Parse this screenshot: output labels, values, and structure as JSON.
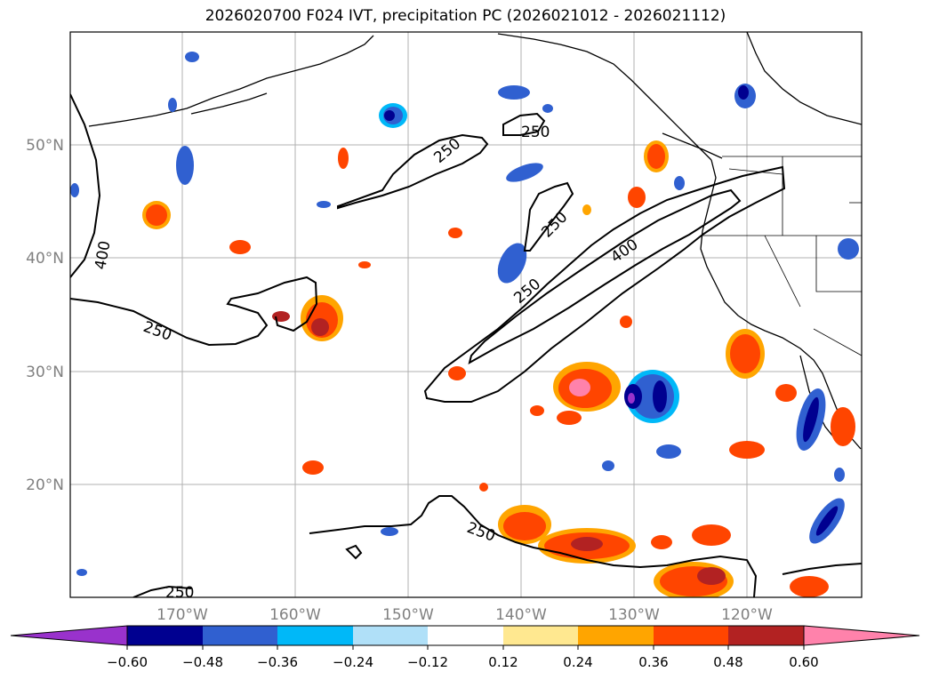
{
  "title": "2026020700 F024 IVT, precipitation PC (2026021012 - 2026021112)",
  "lat_labels": [
    "50°N",
    "40°N",
    "30°N",
    "20°N"
  ],
  "lon_labels": [
    "170°W",
    "160°W",
    "150°W",
    "140°W",
    "130°W",
    "120°W"
  ],
  "contour_labels": [
    "250",
    "250",
    "250",
    "250",
    "250",
    "250",
    "250",
    "400",
    "400"
  ],
  "colorbar": {
    "ticks": [
      "−0.60",
      "−0.48",
      "−0.36",
      "−0.24",
      "−0.12",
      "0.12",
      "0.24",
      "0.36",
      "0.48",
      "0.60"
    ],
    "colors": [
      "#9932cc",
      "#000090",
      "#3060d0",
      "#00b8f8",
      "#b0e0f8",
      "#ffffff",
      "#ffe890",
      "#ffa500",
      "#ff4500",
      "#b22222",
      "#ff82ab",
      "#ff82ab"
    ]
  }
}
